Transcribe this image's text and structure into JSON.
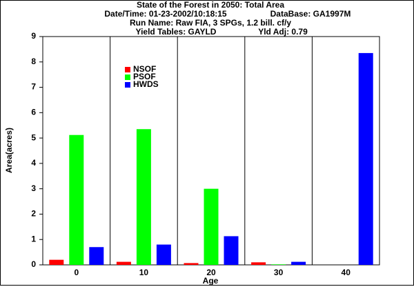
{
  "chart_data": {
    "type": "bar",
    "title": "State of the Forest in 2050: Total Area",
    "subtitle_lines": [
      [
        "Date/Time: 01-23-2002/10:18:15",
        "DataBase: GA1997M"
      ],
      [
        "Run Name: Raw FIA, 3 SPGs, 1.2 bill. cf/y"
      ],
      [
        "Yield Tables: GAYLD",
        "Yld Adj: 0.79"
      ]
    ],
    "x_label": "Age",
    "y_label": "Area(acres)",
    "categories": [
      "0",
      "10",
      "20",
      "30",
      "40"
    ],
    "series": [
      {
        "name": "NSOF",
        "color": "#ff0000",
        "values": [
          0.2,
          0.12,
          0.07,
          0.1,
          0
        ]
      },
      {
        "name": "PSOF",
        "color": "#00ff00",
        "values": [
          5.12,
          5.35,
          3.0,
          0.02,
          0
        ]
      },
      {
        "name": "HWDS",
        "color": "#0000ff",
        "values": [
          0.7,
          0.8,
          1.13,
          0.12,
          8.35
        ]
      }
    ],
    "ylim": [
      0,
      9
    ],
    "yticks": [
      0,
      1,
      2,
      3,
      4,
      5,
      6,
      7,
      8,
      9
    ],
    "category_grid": true
  }
}
